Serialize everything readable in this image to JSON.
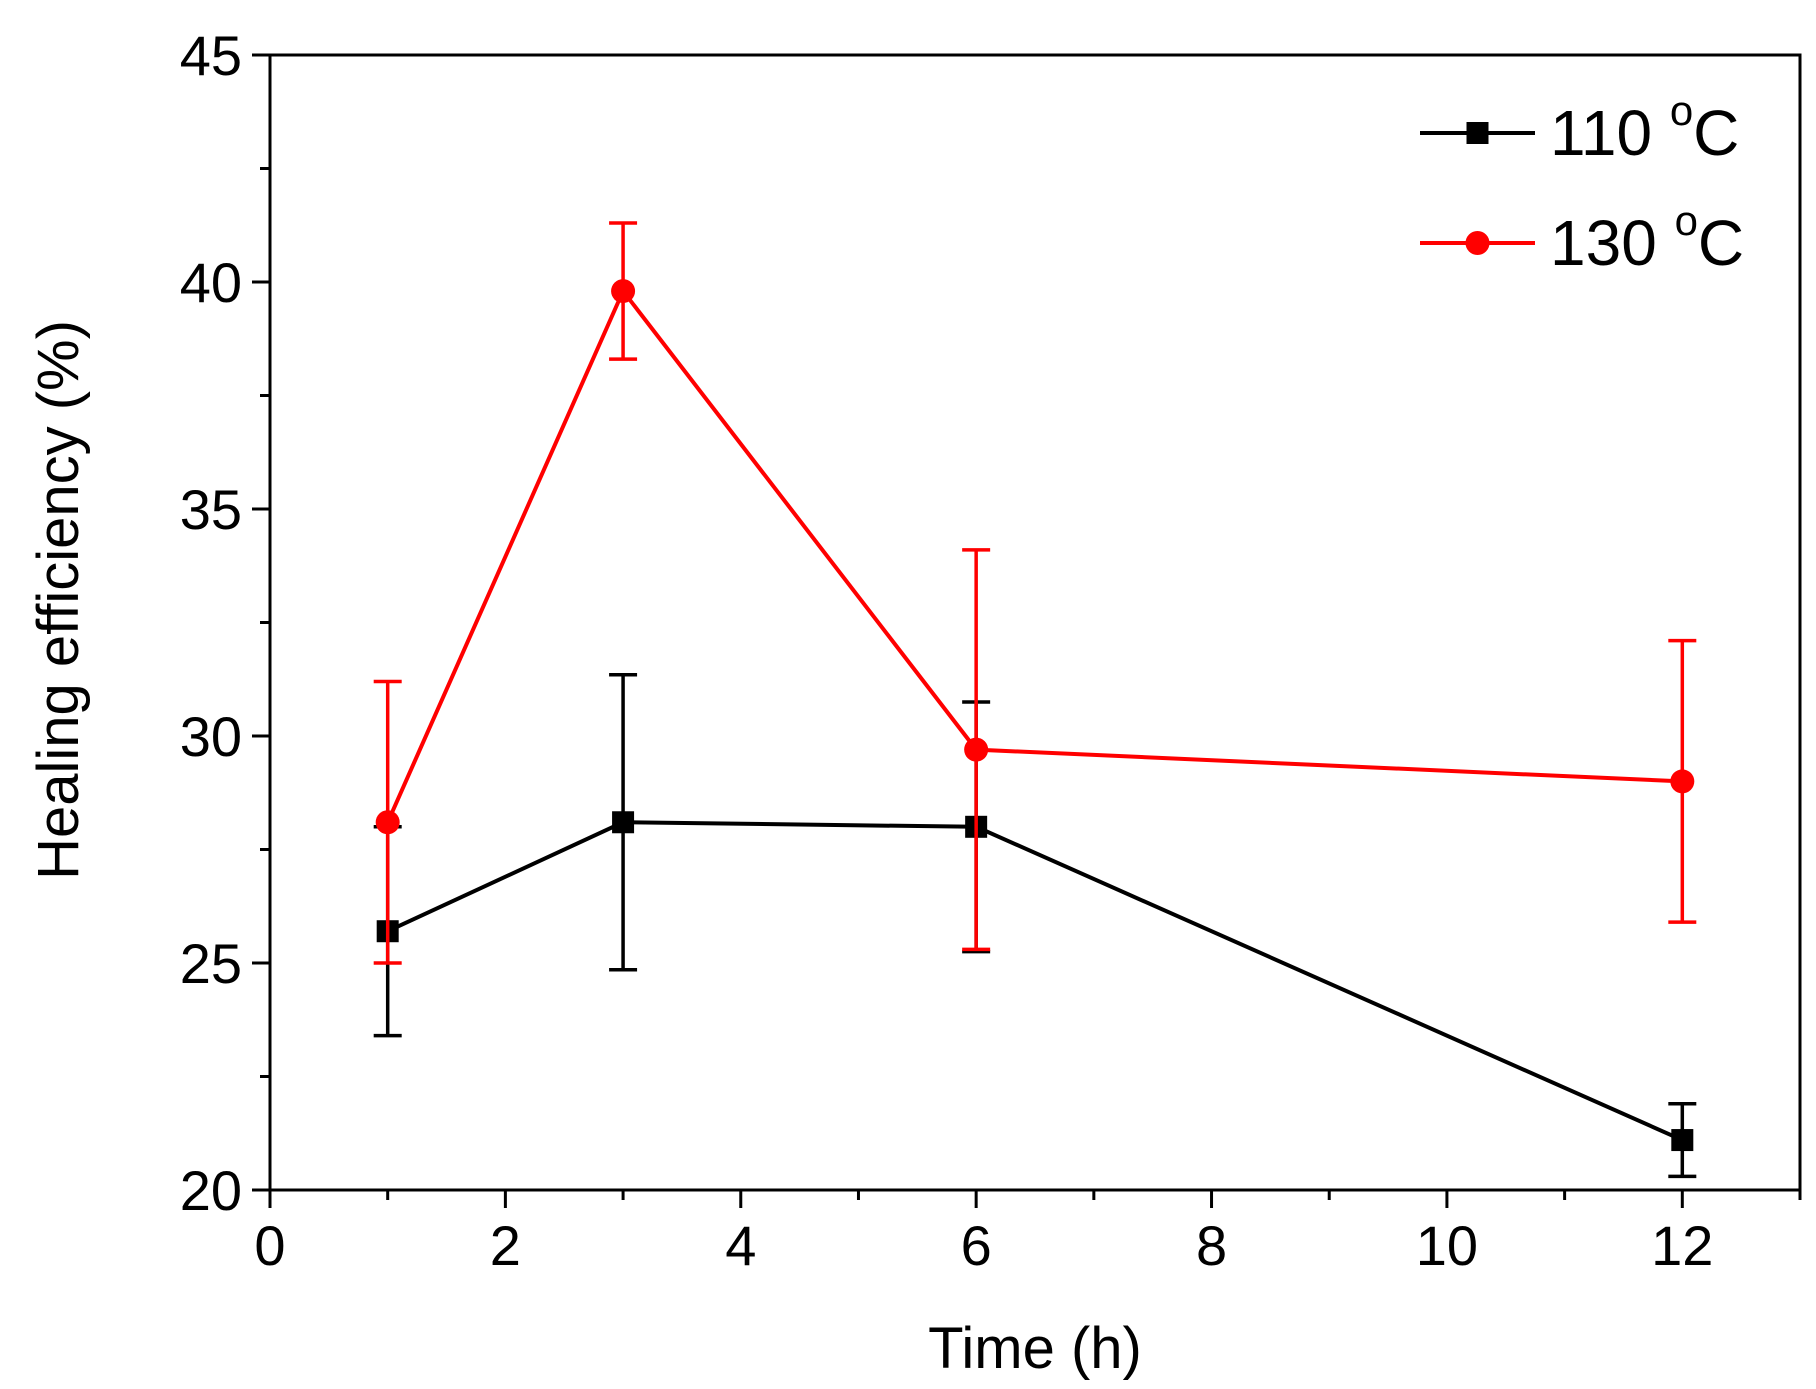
{
  "chart_data": {
    "type": "line",
    "title": "",
    "xlabel": "Time (h)",
    "ylabel": "Healing efficiency (%)",
    "xlim": [
      0,
      13
    ],
    "ylim": [
      20,
      45
    ],
    "xticks": [
      0,
      2,
      4,
      6,
      8,
      10,
      12
    ],
    "yticks": [
      20,
      25,
      30,
      35,
      40,
      45
    ],
    "x_minor_step": 1,
    "y_minor_step": 2.5,
    "grid": false,
    "legend_position": "top-right",
    "x": [
      1,
      3,
      6,
      12
    ],
    "series": [
      {
        "name": "110",
        "name_superscript": "o",
        "name_suffix": "C",
        "color": "#000000",
        "marker": "square",
        "values": [
          25.7,
          28.1,
          28.0,
          21.1
        ],
        "error": [
          2.3,
          3.25,
          2.75,
          0.8
        ]
      },
      {
        "name": "130",
        "name_superscript": "o",
        "name_suffix": "C",
        "color": "#ff0000",
        "marker": "circle",
        "values": [
          28.1,
          39.8,
          29.7,
          29.0
        ],
        "error": [
          3.1,
          1.5,
          4.4,
          3.1
        ]
      }
    ]
  }
}
